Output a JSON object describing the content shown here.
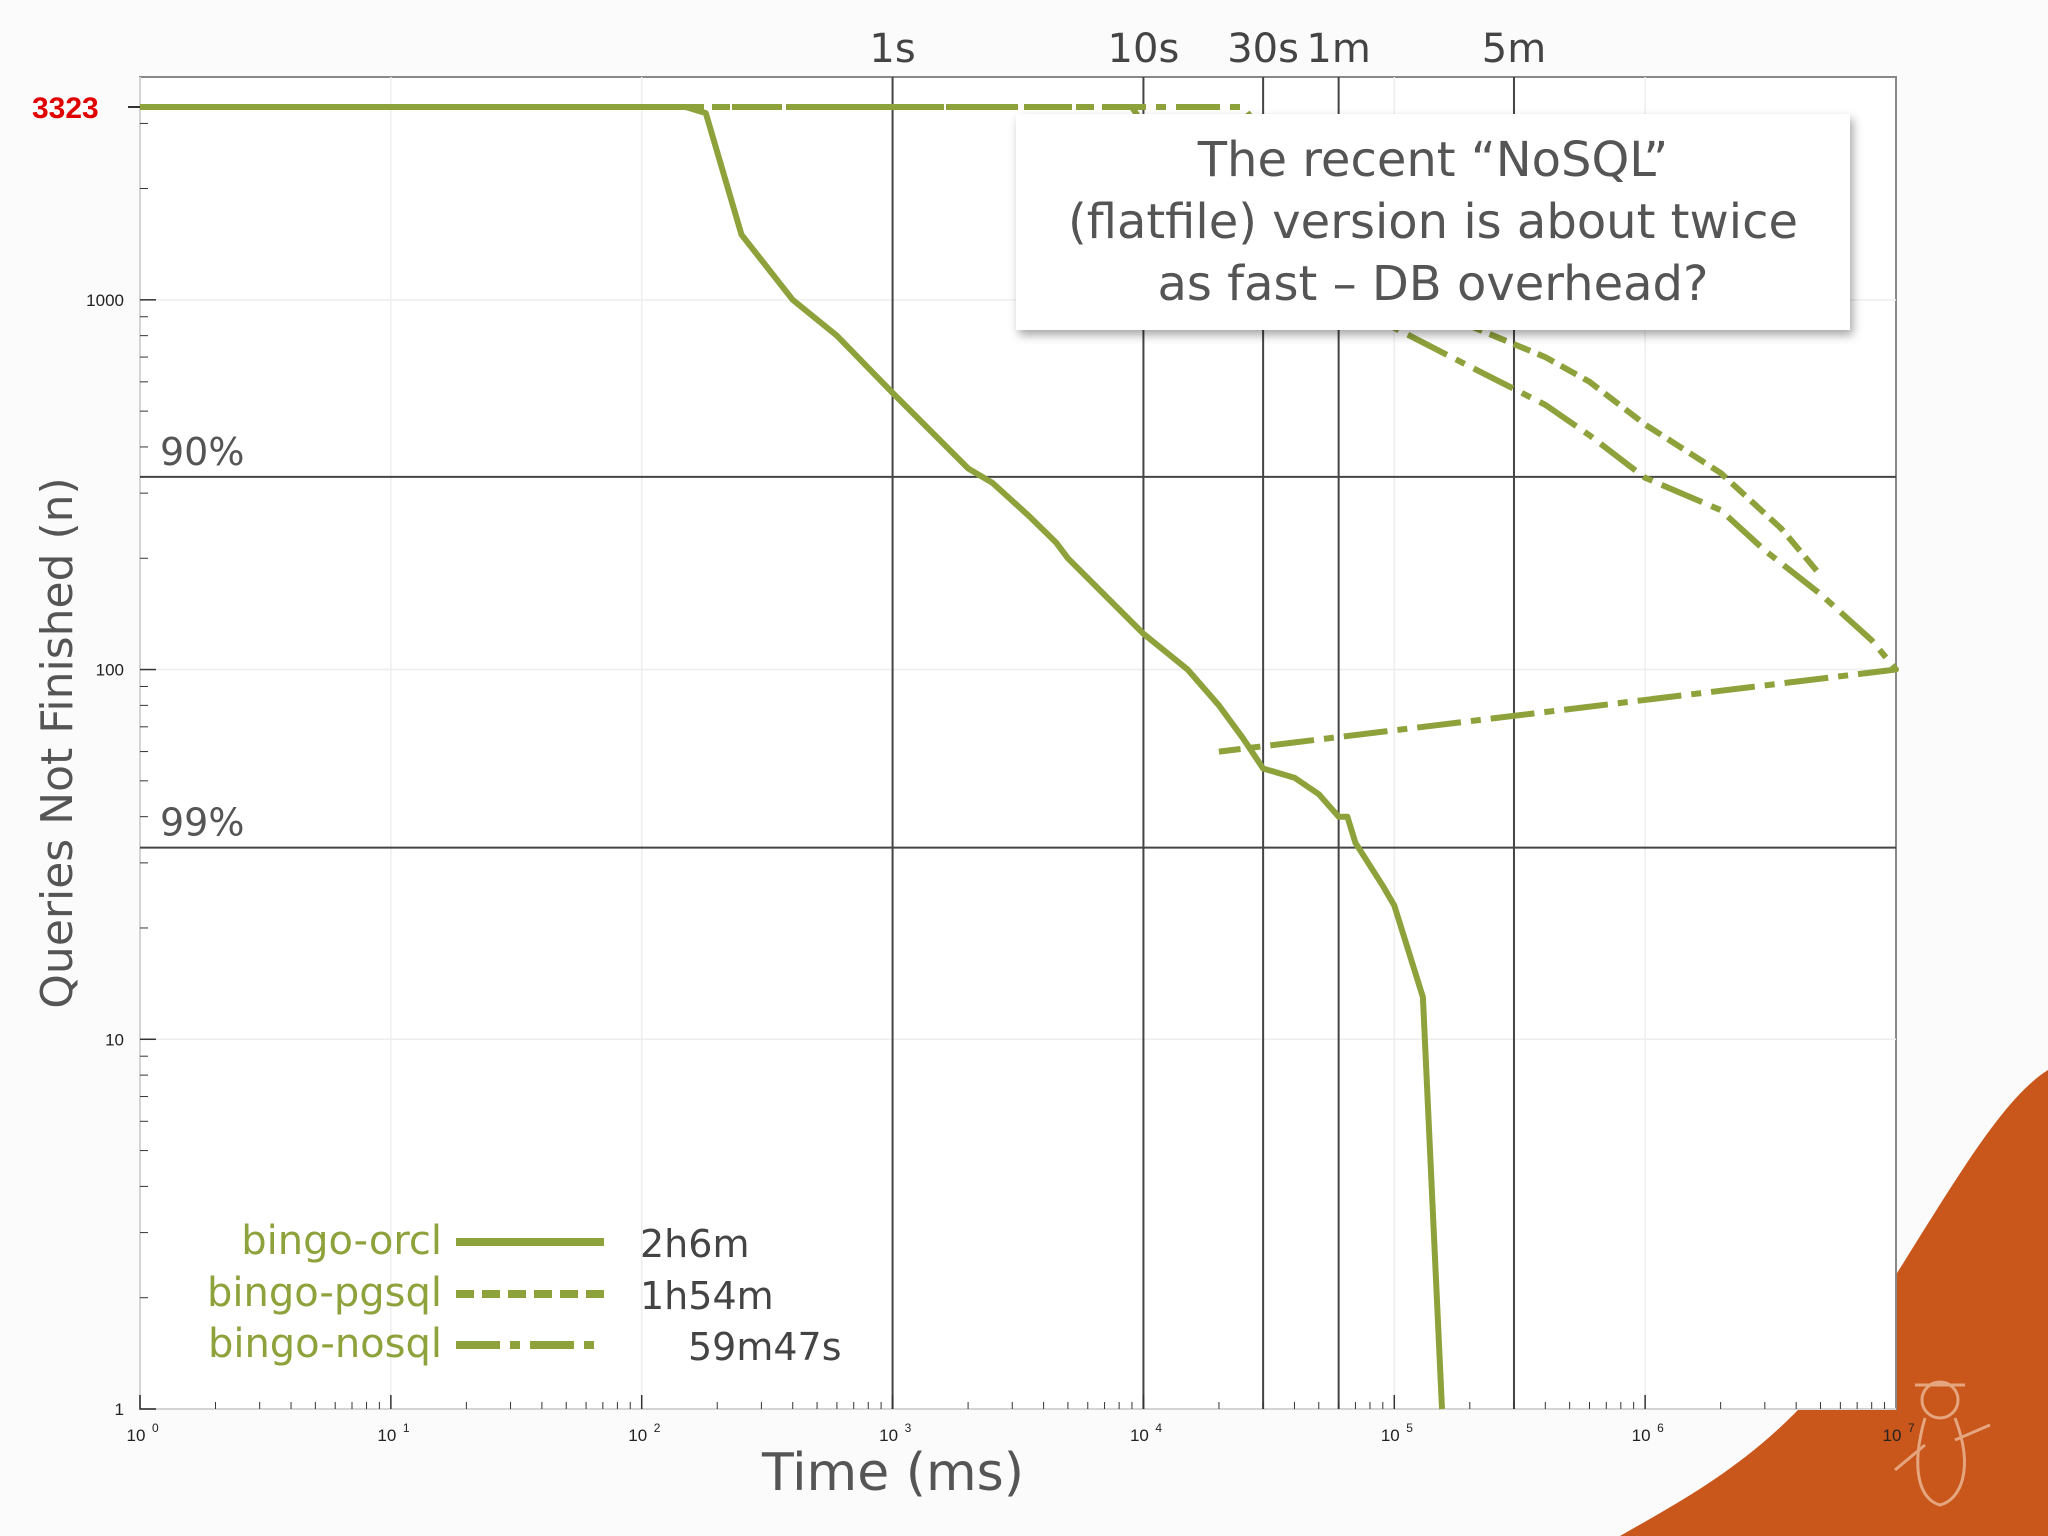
{
  "annotation": {
    "lines": [
      "The recent “NoSQL”",
      "(flatfile) version is about twice",
      "as fast – DB overhead?"
    ]
  },
  "colors": {
    "series": "#8ea23c",
    "max_label": "#e00000",
    "corner_shape": "#c9561a",
    "text": "#555555"
  },
  "chart_data": {
    "type": "line",
    "xlabel": "Time (ms)",
    "ylabel": "Queries Not Finished (n)",
    "x_scale": "log",
    "y_scale": "log",
    "xlim": [
      1,
      10000000
    ],
    "ylim": [
      1,
      3500
    ],
    "x_ticks": [
      {
        "base": "10",
        "exp": "0",
        "value": 1
      },
      {
        "base": "10",
        "exp": "1",
        "value": 10
      },
      {
        "base": "10",
        "exp": "2",
        "value": 100
      },
      {
        "base": "10",
        "exp": "3",
        "value": 1000
      },
      {
        "base": "10",
        "exp": "4",
        "value": 10000
      },
      {
        "base": "10",
        "exp": "5",
        "value": 100000
      },
      {
        "base": "10",
        "exp": "6",
        "value": 1000000
      },
      {
        "base": "10",
        "exp": "7",
        "value": 10000000
      }
    ],
    "y_ticks": [
      {
        "label": "1",
        "value": 1
      },
      {
        "label": "10",
        "value": 10
      },
      {
        "label": "100",
        "value": 100
      },
      {
        "label": "1000",
        "value": 1000
      }
    ],
    "grid": true,
    "max_marker": {
      "label": "3323",
      "value": 3323
    },
    "time_markers": [
      {
        "label": "1s",
        "value": 1000
      },
      {
        "label": "10s",
        "value": 10000
      },
      {
        "label": "30s",
        "value": 30000
      },
      {
        "label": "1m",
        "value": 60000
      },
      {
        "label": "5m",
        "value": 300000
      }
    ],
    "percent_markers": [
      {
        "label": "90%",
        "value": 332
      },
      {
        "label": "99%",
        "value": 33
      }
    ],
    "legend_position": "bottom-left",
    "series": [
      {
        "name": "bingo-orcl",
        "total_time": "2h6m",
        "style": "solid",
        "points": [
          [
            1,
            3323
          ],
          [
            150,
            3323
          ],
          [
            180,
            3200
          ],
          [
            250,
            1500
          ],
          [
            400,
            1000
          ],
          [
            600,
            800
          ],
          [
            1000,
            560
          ],
          [
            2000,
            350
          ],
          [
            2500,
            320
          ],
          [
            3500,
            260
          ],
          [
            4500,
            220
          ],
          [
            5000,
            200
          ],
          [
            10000,
            125
          ],
          [
            15000,
            100
          ],
          [
            20000,
            80
          ],
          [
            25000,
            65
          ],
          [
            30000,
            54
          ],
          [
            40000,
            51
          ],
          [
            50000,
            46
          ],
          [
            60000,
            40
          ],
          [
            65000,
            40
          ],
          [
            70000,
            34
          ],
          [
            90000,
            26
          ],
          [
            100000,
            23
          ],
          [
            130000,
            13
          ],
          [
            155000,
            1
          ]
        ]
      },
      {
        "name": "bingo-pgsql",
        "total_time": "1h54m",
        "style": "dashed",
        "points": [
          [
            1,
            3323
          ],
          [
            9000,
            3323
          ],
          [
            11000,
            2700
          ],
          [
            14000,
            2000
          ],
          [
            20000,
            1700
          ],
          [
            30000,
            1500
          ],
          [
            50000,
            1300
          ],
          [
            100000,
            1000
          ],
          [
            200000,
            850
          ],
          [
            400000,
            700
          ],
          [
            600000,
            600
          ],
          [
            1000000,
            460
          ],
          [
            2000000,
            340
          ],
          [
            3500000,
            240
          ],
          [
            5000000,
            180
          ]
        ]
      },
      {
        "name": "bingo-nosql",
        "total_time": "59m47s",
        "style": "dashdot",
        "points": [
          [
            1,
            3323
          ],
          [
            25000,
            3323
          ],
          [
            27000,
            3100
          ],
          [
            30000,
            1800
          ],
          [
            35000,
            1400
          ],
          [
            50000,
            1100
          ],
          [
            100000,
            840
          ],
          [
            200000,
            660
          ],
          [
            400000,
            520
          ],
          [
            600000,
            430
          ],
          [
            1000000,
            330
          ],
          [
            2000000,
            270
          ],
          [
            3000000,
            210
          ],
          [
            5000000,
            160
          ],
          [
            8000000,
            120
          ],
          [
            10000000,
            100
          ],
          [
            15000000,
            75
          ],
          [
            20000,
            60
          ]
        ]
      }
    ]
  }
}
